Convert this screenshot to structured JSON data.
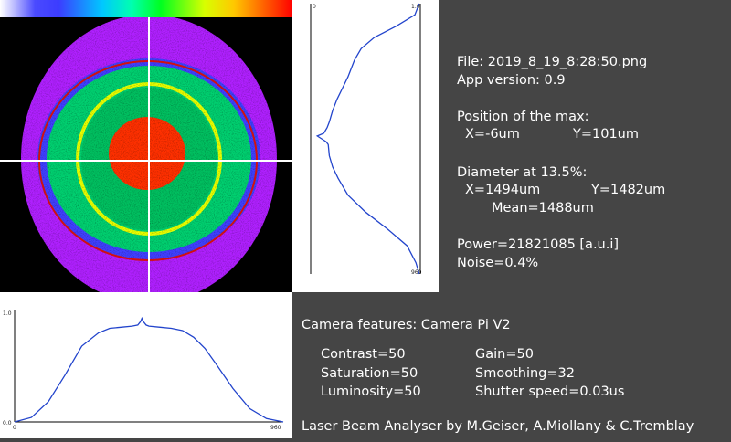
{
  "app_title": "Laser Beam Analyser",
  "info": {
    "file": "File: 2019_8_19_8:28:50.png",
    "app_version": "App version: 0.9",
    "max_heading": "Position of the max:",
    "max_x": "X=-6um",
    "max_y": "Y=101um",
    "diameter_heading": "Diameter at 13.5%:",
    "diameter_x": "X=1494um",
    "diameter_y": "Y=1482um",
    "diameter_mean": "Mean=1488um",
    "power": "Power=21821085 [a.u.i]",
    "noise": "Noise=0.4%"
  },
  "camera": {
    "heading": "Camera features: Camera Pi V2",
    "contrast": "Contrast=50",
    "saturation": "Saturation=50",
    "luminosity": "Luminosity=50",
    "gain": "Gain=50",
    "smoothing": "Smoothing=32",
    "shutter_speed": "Shutter speed=0.03us"
  },
  "credits": "Laser Beam Analyser by M.Geiser, A.Miollany & C.Tremblay",
  "chart_data": [
    {
      "type": "line",
      "name": "horizontal-profile",
      "x_ticks": [
        "0",
        "960"
      ],
      "y_ticks": [
        "0.0",
        "1.0"
      ],
      "xlim": [
        0,
        960
      ],
      "ylim": [
        0,
        1
      ],
      "x": [
        0,
        60,
        120,
        180,
        240,
        300,
        340,
        380,
        420,
        440,
        450,
        455,
        460,
        470,
        480,
        520,
        560,
        600,
        640,
        680,
        720,
        780,
        840,
        900,
        960
      ],
      "y": [
        0.0,
        0.04,
        0.18,
        0.42,
        0.68,
        0.8,
        0.84,
        0.85,
        0.86,
        0.87,
        0.9,
        0.93,
        0.9,
        0.87,
        0.86,
        0.85,
        0.84,
        0.82,
        0.76,
        0.66,
        0.52,
        0.3,
        0.12,
        0.03,
        0.0
      ]
    },
    {
      "type": "line",
      "name": "vertical-profile",
      "x_ticks": [
        "0",
        "1.0"
      ],
      "y_ticks": [
        "0",
        "960"
      ],
      "xlim": [
        0,
        1
      ],
      "ylim": [
        0,
        960
      ],
      "y": [
        0,
        40,
        80,
        120,
        160,
        200,
        260,
        300,
        340,
        380,
        420,
        440,
        460,
        470,
        480,
        490,
        500,
        540,
        580,
        620,
        680,
        740,
        800,
        860,
        920,
        960
      ],
      "x": [
        0.99,
        0.95,
        0.78,
        0.58,
        0.46,
        0.4,
        0.34,
        0.29,
        0.24,
        0.2,
        0.17,
        0.15,
        0.12,
        0.06,
        0.1,
        0.14,
        0.16,
        0.17,
        0.2,
        0.25,
        0.34,
        0.5,
        0.7,
        0.88,
        0.96,
        0.99
      ]
    }
  ]
}
